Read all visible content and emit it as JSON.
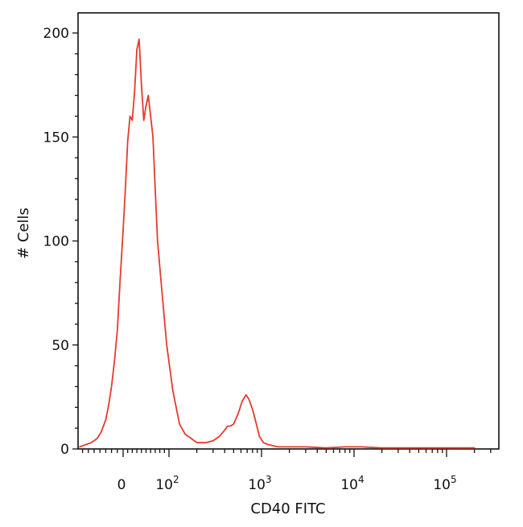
{
  "chart_data": {
    "type": "line",
    "title": "",
    "xlabel": "CD40 FITC",
    "ylabel": "# Cells",
    "x_scale": "biexponential",
    "ylim": [
      0,
      200
    ],
    "grid": false,
    "legend": "none",
    "colors": {
      "series": "#e53b2c",
      "axes": "#111111"
    },
    "y_ticks": [
      {
        "value": 0,
        "label": "0"
      },
      {
        "value": 50,
        "label": "50"
      },
      {
        "value": 100,
        "label": "100"
      },
      {
        "value": 150,
        "label": "150"
      },
      {
        "value": 200,
        "label": "200"
      }
    ],
    "x_ticks": [
      {
        "value": 0,
        "base": "0",
        "exp": ""
      },
      {
        "value": 100,
        "base": "10",
        "exp": "2"
      },
      {
        "value": 1000,
        "base": "10",
        "exp": "3"
      },
      {
        "value": 10000,
        "base": "10",
        "exp": "4"
      },
      {
        "value": 100000,
        "base": "10",
        "exp": "5"
      }
    ],
    "series": [
      {
        "name": "",
        "x": [
          -75,
          -55,
          -45,
          -38,
          -30,
          -25,
          -20,
          -15,
          -10,
          -5,
          0,
          5,
          10,
          15,
          20,
          25,
          30,
          35,
          40,
          45,
          50,
          55,
          60,
          65,
          70,
          75,
          85,
          95,
          110,
          130,
          150,
          175,
          200,
          250,
          300,
          350,
          400,
          430,
          460,
          500,
          560,
          620,
          680,
          730,
          800,
          880,
          950,
          1050,
          1200,
          1500,
          2000,
          3000,
          5000,
          8000,
          12000,
          20000,
          50000,
          100000,
          200000
        ],
        "y": [
          1,
          3,
          5,
          8,
          14,
          21,
          30,
          42,
          57,
          82,
          105,
          125,
          148,
          160,
          158,
          172,
          192,
          197,
          175,
          158,
          165,
          170,
          160,
          150,
          125,
          100,
          75,
          50,
          28,
          12,
          7,
          5,
          3,
          3,
          4,
          6,
          9,
          11,
          11,
          12,
          17,
          23,
          26,
          24,
          19,
          12,
          6,
          3,
          2,
          1,
          1,
          1,
          0.5,
          1,
          1,
          0.5,
          0.5,
          0.5,
          0.5
        ]
      }
    ]
  }
}
